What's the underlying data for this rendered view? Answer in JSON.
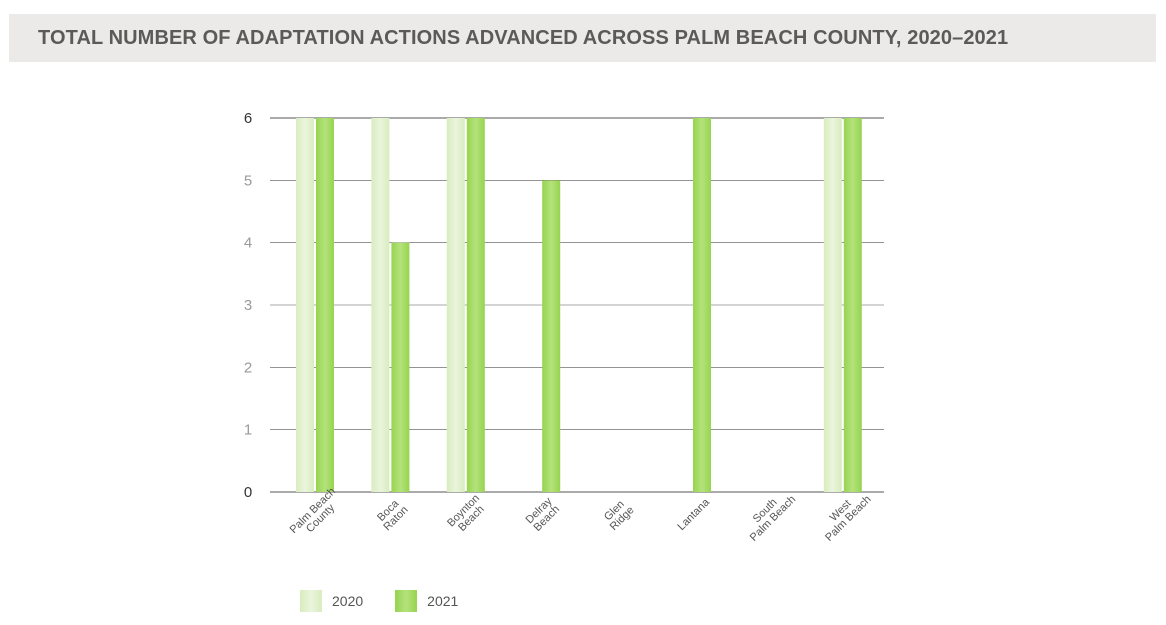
{
  "header": {
    "title": "TOTAL NUMBER OF ADAPTATION ACTIONS ADVANCED ACROSS PALM BEACH COUNTY, 2020–2021"
  },
  "colors": {
    "series_2020": "#d9ecbf",
    "series_2021": "#96d44f",
    "gridline": "#555555",
    "header_bg": "#ebeae8",
    "title_text": "#5a5a5a",
    "tick_text": "#555555"
  },
  "chart_data": {
    "type": "bar",
    "title": "TOTAL NUMBER OF ADAPTATION ACTIONS ADVANCED ACROSS PALM BEACH COUNTY, 2020–2021",
    "categories": [
      [
        "Palm Beach",
        "County"
      ],
      [
        "Boca",
        "Raton"
      ],
      [
        "Boynton",
        "Beach"
      ],
      [
        "Delray",
        "Beach"
      ],
      [
        "Glen",
        "Ridge"
      ],
      [
        "Lantana"
      ],
      [
        "South",
        "Palm Beach"
      ],
      [
        "West",
        "Palm Beach"
      ]
    ],
    "series": [
      {
        "name": "2020",
        "values": [
          6,
          6,
          6,
          0,
          0,
          0,
          0,
          6
        ]
      },
      {
        "name": "2021",
        "values": [
          6,
          4,
          6,
          5,
          0,
          6,
          0,
          6
        ]
      }
    ],
    "ylim": [
      0,
      6
    ],
    "yticks": [
      "0",
      "1",
      "2",
      "3",
      "4",
      "5",
      "6"
    ],
    "grid": true,
    "legend": "bottom-left"
  }
}
